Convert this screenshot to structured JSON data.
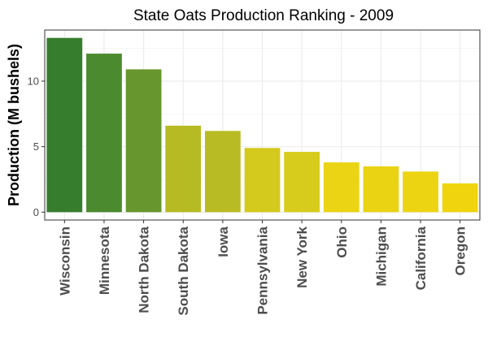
{
  "chart_data": {
    "type": "bar",
    "title": "State Oats Production Ranking - 2009",
    "xlabel": "",
    "ylabel": "Production (M bushels)",
    "ylim": [
      -0.6,
      13.9
    ],
    "yticks": [
      0,
      5,
      10
    ],
    "grid": true,
    "categories": [
      "Wisconsin",
      "Minnesota",
      "North Dakota",
      "South Dakota",
      "Iowa",
      "Pennsylvania",
      "New York",
      "Ohio",
      "Michigan",
      "California",
      "Oregon"
    ],
    "values": [
      13.3,
      12.1,
      10.9,
      6.6,
      6.2,
      4.9,
      4.6,
      3.8,
      3.5,
      3.1,
      2.2
    ],
    "colors": [
      "#367e2e",
      "#4b8a2e",
      "#66962d",
      "#b6bb23",
      "#b8bb24",
      "#d4c91d",
      "#d7cc1c",
      "#ead413",
      "#e9d313",
      "#ecd412",
      "#f0d50e"
    ]
  }
}
